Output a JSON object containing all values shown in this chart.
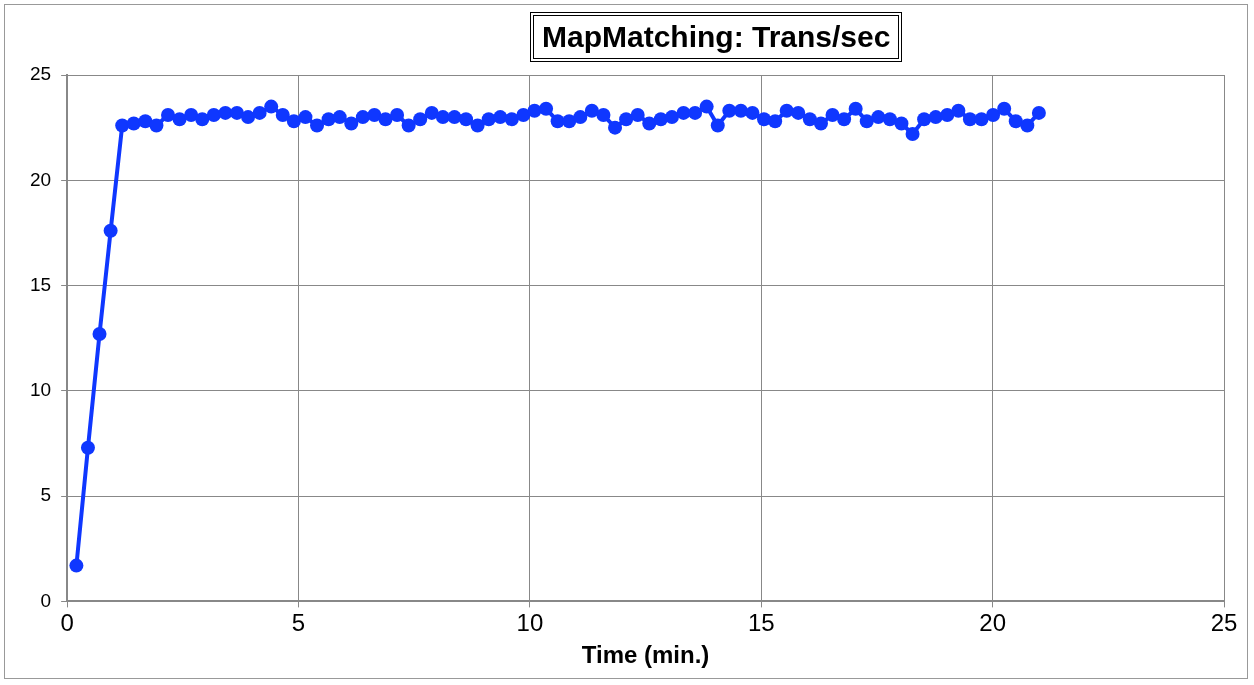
{
  "chart_data": {
    "type": "line",
    "title": "MapMatching: Trans/sec",
    "xlabel": "Time (min.)",
    "x": [
      0.2,
      0.45,
      0.7,
      0.94,
      1.19,
      1.44,
      1.69,
      1.93,
      2.18,
      2.43,
      2.68,
      2.92,
      3.17,
      3.42,
      3.67,
      3.91,
      4.16,
      4.41,
      4.66,
      4.9,
      5.15,
      5.4,
      5.65,
      5.89,
      6.14,
      6.39,
      6.64,
      6.88,
      7.13,
      7.38,
      7.63,
      7.88,
      8.12,
      8.37,
      8.62,
      8.87,
      9.11,
      9.36,
      9.61,
      9.86,
      10.1,
      10.35,
      10.6,
      10.85,
      11.09,
      11.34,
      11.59,
      11.84,
      12.08,
      12.33,
      12.58,
      12.83,
      13.07,
      13.32,
      13.57,
      13.82,
      14.06,
      14.31,
      14.56,
      14.81,
      15.06,
      15.3,
      15.55,
      15.8,
      16.05,
      16.29,
      16.54,
      16.79,
      17.04,
      17.28,
      17.53,
      17.78,
      18.03,
      18.27,
      18.52,
      18.77,
      19.02,
      19.26,
      19.51,
      19.76,
      20.01,
      20.25,
      20.5,
      20.75,
      21.0
    ],
    "series": [
      {
        "color": "#0f37ff",
        "values": [
          1.7,
          7.3,
          12.7,
          17.6,
          22.6,
          22.7,
          22.8,
          22.6,
          23.1,
          22.9,
          23.1,
          22.9,
          23.1,
          23.2,
          23.2,
          23.0,
          23.2,
          23.5,
          23.1,
          22.8,
          23.0,
          22.6,
          22.9,
          23.0,
          22.7,
          23.0,
          23.1,
          22.9,
          23.1,
          22.6,
          22.9,
          23.2,
          23.0,
          23.0,
          22.9,
          22.6,
          22.9,
          23.0,
          22.9,
          23.1,
          23.3,
          23.4,
          22.8,
          22.8,
          23.0,
          23.3,
          23.1,
          22.5,
          22.9,
          23.1,
          22.7,
          22.9,
          23.0,
          23.2,
          23.2,
          23.5,
          22.6,
          23.3,
          23.3,
          23.2,
          22.9,
          22.8,
          23.3,
          23.2,
          22.9,
          22.7,
          23.1,
          22.9,
          23.4,
          22.8,
          23.0,
          22.9,
          22.7,
          22.2,
          22.9,
          23.0,
          23.1,
          23.3,
          22.9,
          22.9,
          23.1,
          23.4,
          22.8,
          22.6,
          23.2
        ]
      }
    ],
    "xlim": [
      0,
      25
    ],
    "xticks": [
      0,
      5,
      10,
      15,
      20,
      25
    ],
    "ylim": [
      0,
      25
    ],
    "yticks": [
      0,
      5,
      10,
      15,
      20,
      25
    ],
    "grid": true,
    "legend": false,
    "marker": "circle",
    "line_style": "solid"
  }
}
